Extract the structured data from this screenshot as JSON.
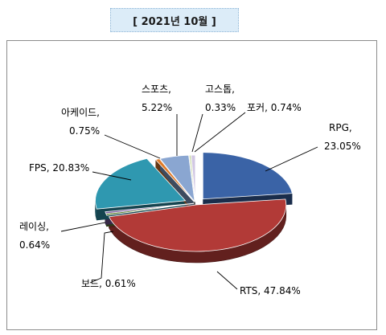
{
  "title": "[ 2021년 10월 ]",
  "chart_data": {
    "type": "pie",
    "title": "[ 2021년 10월 ]",
    "slices": [
      {
        "name": "RPG",
        "value": 23.05,
        "label_value": "23.05%",
        "color": "#3a63a6"
      },
      {
        "name": "RTS",
        "value": 47.84,
        "label_value": "47.84%",
        "color": "#b23a37"
      },
      {
        "name": "보드",
        "value": 0.61,
        "label_value": "0.61%",
        "color": "#5b7f2e"
      },
      {
        "name": "레이싱",
        "value": 0.64,
        "label_value": "0.64%",
        "color": "#7a5c9e"
      },
      {
        "name": "FPS",
        "value": 20.83,
        "label_value": "20.83%",
        "color": "#2f98b0"
      },
      {
        "name": "아케이드",
        "value": 0.75,
        "label_value": "0.75%",
        "color": "#e07a28"
      },
      {
        "name": "스포츠",
        "value": 5.22,
        "label_value": "5.22%",
        "color": "#8aa6d1"
      },
      {
        "name": "고스톱",
        "value": 0.33,
        "label_value": "0.33%",
        "color": "#c9d9a6"
      },
      {
        "name": "포커",
        "value": 0.74,
        "label_value": "0.74%",
        "color": "#d1c7e3"
      }
    ]
  }
}
